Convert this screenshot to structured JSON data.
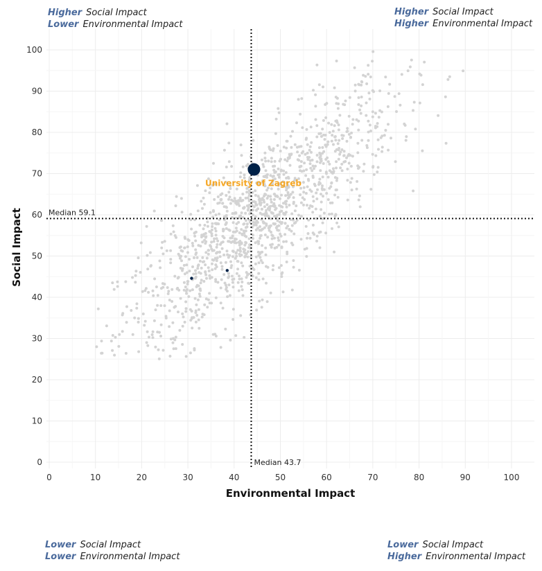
{
  "quadrants": {
    "top_left": {
      "line1_kw": "Higher",
      "line1_txt": "Social Impact",
      "line2_kw": "Lower",
      "line2_txt": "Environmental Impact"
    },
    "top_right": {
      "line1_kw": "Higher",
      "line1_txt": "Social Impact",
      "line2_kw": "Higher",
      "line2_txt": "Environmental Impact"
    },
    "bottom_left": {
      "line1_kw": "Lower",
      "line1_txt": "Social Impact",
      "line2_kw": "Lower",
      "line2_txt": "Environmental Impact"
    },
    "bottom_right": {
      "line1_kw": "Lower",
      "line1_txt": "Social Impact",
      "line2_kw": "Higher",
      "line2_txt": "Environmental Impact"
    }
  },
  "chart_data": {
    "type": "scatter",
    "xlabel": "Environmental Impact",
    "ylabel": "Social Impact",
    "xlim": [
      0,
      100
    ],
    "ylim": [
      0,
      100
    ],
    "xticks": [
      "0",
      "10",
      "20",
      "30",
      "40",
      "50",
      "60",
      "70",
      "80",
      "90",
      "100"
    ],
    "yticks": [
      "0",
      "10",
      "20",
      "30",
      "40",
      "50",
      "60",
      "70",
      "80",
      "90",
      "100"
    ],
    "grid": true,
    "median_x": {
      "value": 43.7,
      "label": "Median 43.7"
    },
    "median_y": {
      "value": 59.1,
      "label": "Median 59.1"
    },
    "highlight": {
      "x": 44.3,
      "y": 71.0,
      "label": "University of Zagreb"
    },
    "secondary_points": [
      {
        "x": 30.8,
        "y": 44.6
      },
      {
        "x": 38.5,
        "y": 46.5
      }
    ],
    "background_cloud": {
      "count": 1400,
      "approximate": true
    },
    "colors": {
      "background_points": "#d3d3d3",
      "highlight": "#002147",
      "highlight_label": "#f5a623",
      "quadrant_keyword": "#4a6a9c"
    }
  }
}
